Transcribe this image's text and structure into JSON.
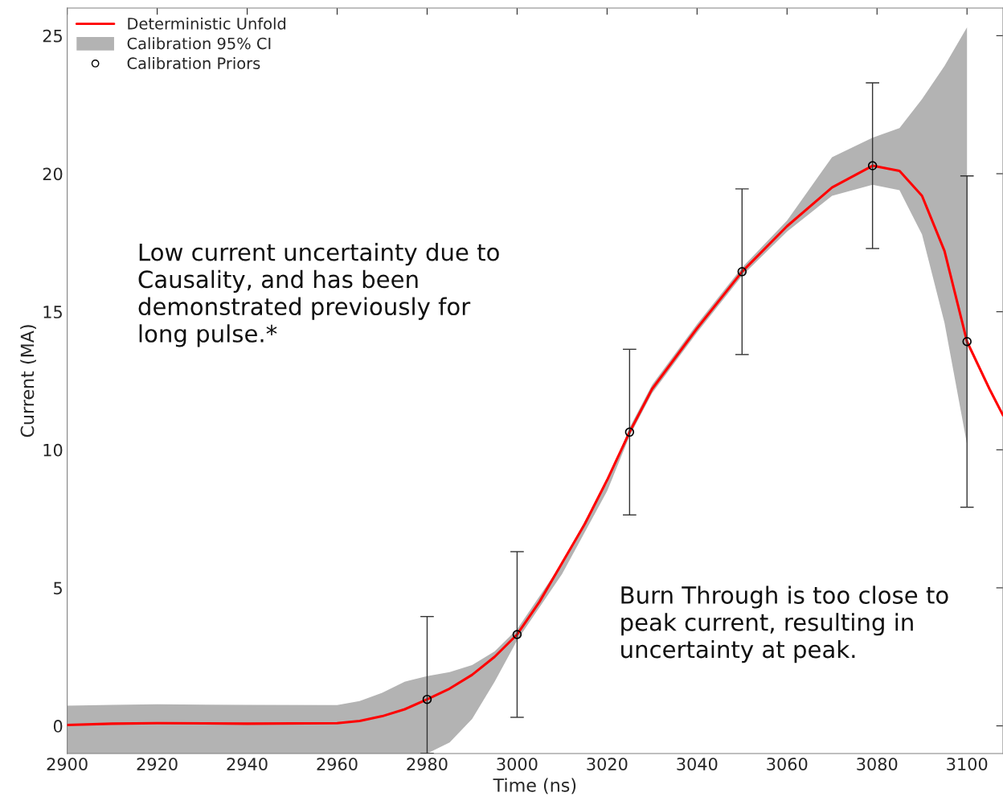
{
  "chart_data": {
    "type": "line",
    "xlabel": "Time (ns)",
    "ylabel": "Current (MA)",
    "xlim": [
      2900,
      3108
    ],
    "ylim": [
      -1,
      26
    ],
    "xticks": [
      2900,
      2920,
      2940,
      2960,
      2980,
      3000,
      3020,
      3040,
      3060,
      3080,
      3100
    ],
    "yticks": [
      0,
      5,
      10,
      15,
      20,
      25
    ],
    "grid": false,
    "legend": "top left",
    "series": [
      {
        "name": "Deterministic Unfold",
        "color": "#ff0000",
        "marker": "none",
        "line_style": "solid",
        "x": [
          2900,
          2910,
          2920,
          2940,
          2960,
          2965,
          2970,
          2975,
          2980,
          2985,
          2990,
          2995,
          3000,
          3005,
          3010,
          3015,
          3020,
          3025,
          3030,
          3040,
          3050,
          3060,
          3070,
          3079,
          3085,
          3090,
          3095,
          3100,
          3105,
          3108
        ],
        "values": [
          0.03,
          0.08,
          0.1,
          0.08,
          0.1,
          0.18,
          0.35,
          0.6,
          0.96,
          1.35,
          1.85,
          2.5,
          3.31,
          4.5,
          5.9,
          7.3,
          8.9,
          10.64,
          12.2,
          14.4,
          16.45,
          18.1,
          19.5,
          20.29,
          20.1,
          19.2,
          17.2,
          13.92,
          12.2,
          11.25
        ],
        "upper": [
          0.73,
          0.76,
          0.78,
          0.76,
          0.75,
          0.9,
          1.2,
          1.6,
          1.8,
          1.95,
          2.2,
          2.7,
          3.5,
          4.7,
          5.9,
          7.4,
          8.8,
          10.8,
          12.35,
          14.55,
          16.6,
          18.3,
          20.6,
          21.3,
          21.65,
          22.7,
          23.9,
          25.3,
          null,
          null
        ],
        "lower": [
          -1,
          -1,
          -1,
          -1,
          -1,
          -1,
          -1,
          -1,
          -1,
          -0.6,
          0.25,
          1.6,
          3.1,
          4.3,
          5.5,
          7.0,
          8.5,
          10.5,
          12.05,
          14.25,
          16.3,
          17.9,
          19.2,
          19.6,
          19.4,
          17.8,
          14.6,
          10.2,
          null,
          null
        ]
      },
      {
        "name": "Calibration Priors",
        "type": "scatter",
        "color": "#000000",
        "marker": "circle",
        "x": [
          2980,
          3000,
          3025,
          3050,
          3079,
          3100
        ],
        "values": [
          0.96,
          3.31,
          10.64,
          16.45,
          20.29,
          13.92
        ],
        "errors": [
          [
            -1,
            3.96
          ],
          3,
          3,
          3,
          3,
          6
        ]
      }
    ],
    "annotations": [
      "Low current uncertainty due to Causality, and has been demonstrated previously for long pulse.*",
      "Burn Through is too close to peak current, resulting in uncertainty at peak.",
      "Calibration 95% CI"
    ]
  }
}
